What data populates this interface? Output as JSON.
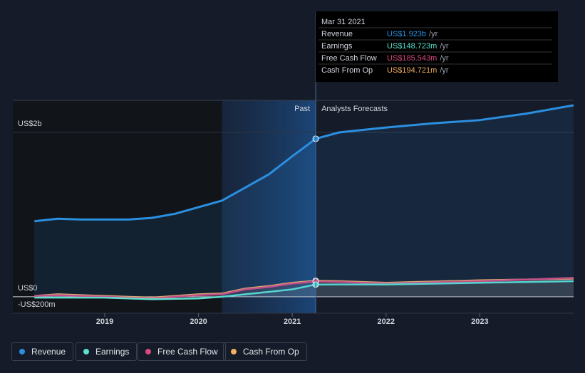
{
  "chart_data": {
    "type": "line",
    "annotations": {
      "past": "Past",
      "forecast": "Analysts Forecasts"
    },
    "highlight": [
      2020.25,
      2021.25
    ],
    "xlim": [
      2018.02,
      2024.0
    ],
    "xticks": [
      2019,
      2020,
      2021,
      2022,
      2023
    ],
    "ylim": [
      -0.2,
      2.39
    ],
    "yticks": [
      {
        "value": 2,
        "label": "US$2b"
      },
      {
        "value": 0,
        "label": "US$0"
      },
      {
        "value": -0.2,
        "label": "-US$200m"
      }
    ],
    "grid": true,
    "series": [
      {
        "name": "Revenue",
        "color": "#2b8fe0",
        "x": [
          2018.25,
          2018.5,
          2018.75,
          2019.0,
          2019.25,
          2019.5,
          2019.75,
          2020.0,
          2020.25,
          2020.5,
          2020.75,
          2021.0,
          2021.25,
          2021.5,
          2022.0,
          2022.5,
          2023.0,
          2023.5,
          2024.0
        ],
        "values": [
          0.92,
          0.95,
          0.94,
          0.94,
          0.94,
          0.96,
          1.01,
          1.09,
          1.17,
          1.33,
          1.49,
          1.71,
          1.923,
          2.0,
          2.06,
          2.11,
          2.15,
          2.23,
          2.33
        ]
      },
      {
        "name": "Earnings",
        "color": "#5ce0d0",
        "x": [
          2018.25,
          2019.0,
          2019.5,
          2020.0,
          2020.25,
          2020.5,
          2020.75,
          2021.0,
          2021.25,
          2021.5,
          2022.0,
          2023.0,
          2024.0
        ],
        "values": [
          -0.01,
          -0.01,
          -0.03,
          -0.02,
          0.0,
          0.03,
          0.06,
          0.09,
          0.149,
          0.15,
          0.15,
          0.17,
          0.19
        ]
      },
      {
        "name": "Free Cash Flow",
        "color": "#d9487f",
        "x": [
          2018.25,
          2018.5,
          2019.0,
          2019.5,
          2020.0,
          2020.25,
          2020.5,
          2020.75,
          2021.0,
          2021.25,
          2021.5,
          2022.0,
          2023.0,
          2024.0
        ],
        "values": [
          0.01,
          0.02,
          0.0,
          -0.02,
          0.02,
          0.03,
          0.09,
          0.12,
          0.16,
          0.186,
          0.18,
          0.16,
          0.19,
          0.23
        ]
      },
      {
        "name": "Cash From Op",
        "color": "#f0b060",
        "x": [
          2018.25,
          2018.5,
          2019.0,
          2019.5,
          2020.0,
          2020.25,
          2020.5,
          2020.75,
          2021.0,
          2021.25,
          2021.5,
          2022.0,
          2023.0,
          2024.0
        ],
        "values": [
          0.01,
          0.03,
          0.01,
          -0.01,
          0.03,
          0.04,
          0.1,
          0.13,
          0.17,
          0.195,
          0.19,
          0.17,
          0.2,
          0.22
        ]
      }
    ],
    "tooltip": {
      "date": "Mar 31 2021",
      "rows": [
        {
          "label": "Revenue",
          "value": "US$1.923b",
          "suffix": "/yr"
        },
        {
          "label": "Earnings",
          "value": "US$148.723m",
          "suffix": "/yr"
        },
        {
          "label": "Free Cash Flow",
          "value": "US$185.543m",
          "suffix": "/yr"
        },
        {
          "label": "Cash From Op",
          "value": "US$194.721m",
          "suffix": "/yr"
        }
      ]
    }
  }
}
